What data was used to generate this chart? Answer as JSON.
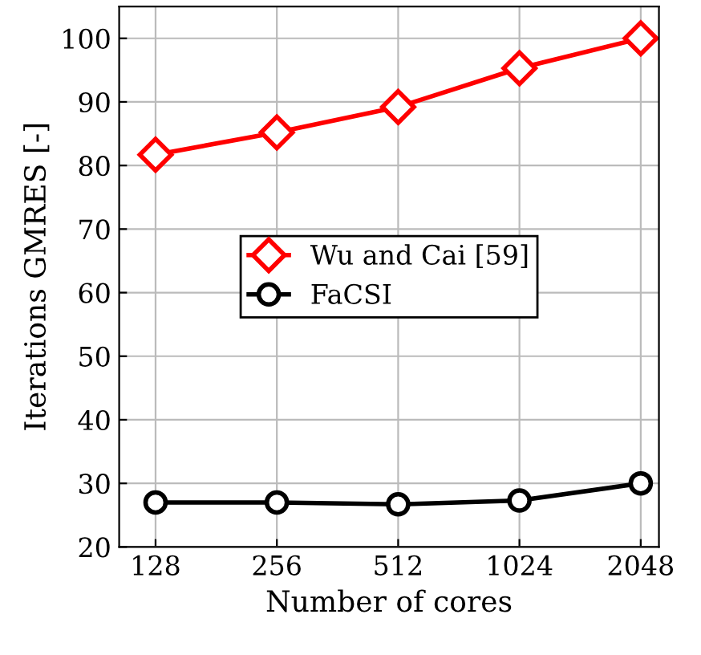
{
  "chart_data": {
    "type": "line",
    "xlabel": "Number of cores",
    "ylabel": "Iterations GMRES [-]",
    "categories": [
      "128",
      "256",
      "512",
      "1024",
      "2048"
    ],
    "series": [
      {
        "name": "Wu and Cai [59]",
        "color": "#ff0000",
        "marker": "diamond",
        "values": [
          81.7,
          85.2,
          89.2,
          95.3,
          100
        ]
      },
      {
        "name": "FaCSI",
        "color": "#000000",
        "marker": "circle",
        "values": [
          27,
          27,
          26.7,
          27.3,
          30
        ]
      }
    ],
    "ylim": [
      20,
      105
    ],
    "yticks": [
      20,
      30,
      40,
      50,
      60,
      70,
      80,
      90,
      100
    ],
    "grid": true,
    "legend": "center"
  }
}
